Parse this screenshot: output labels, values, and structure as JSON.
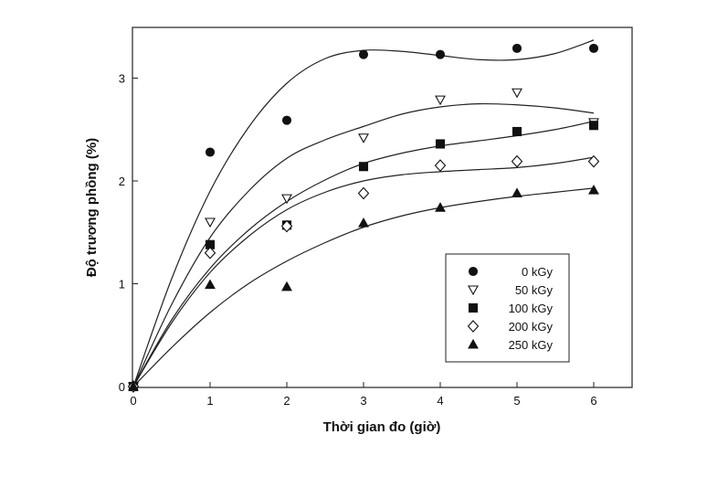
{
  "chart_data": {
    "type": "scatter",
    "title": "",
    "xlabel": "Thời gian đo (giờ)",
    "ylabel": "Độ trương phồng (%)",
    "xlim": [
      0,
      6.5
    ],
    "ylim": [
      0,
      3.5
    ],
    "xticks": [
      0,
      1,
      2,
      3,
      4,
      5,
      6
    ],
    "yticks": [
      0,
      1,
      2,
      3
    ],
    "grid": false,
    "legend_position": "lower-right",
    "trend_lines": true,
    "series": [
      {
        "name": "0 kGy",
        "marker": "filled-circle",
        "x": [
          0,
          1,
          2,
          3,
          4,
          5,
          6
        ],
        "y": [
          0,
          2.28,
          2.59,
          3.23,
          3.23,
          3.29,
          3.29
        ]
      },
      {
        "name": "50 kGy",
        "marker": "open-triangle-down",
        "x": [
          0,
          1,
          2,
          3,
          4,
          5,
          6
        ],
        "y": [
          0,
          1.6,
          1.83,
          2.42,
          2.79,
          2.86,
          2.57
        ]
      },
      {
        "name": "100 kGy",
        "marker": "filled-square",
        "x": [
          0,
          1,
          2,
          3,
          4,
          5,
          6
        ],
        "y": [
          0,
          1.38,
          1.57,
          2.14,
          2.36,
          2.48,
          2.54
        ]
      },
      {
        "name": "200 kGy",
        "marker": "open-diamond",
        "x": [
          0,
          1,
          2,
          3,
          4,
          5,
          6
        ],
        "y": [
          0,
          1.3,
          1.56,
          1.88,
          2.15,
          2.19,
          2.19
        ]
      },
      {
        "name": "250 kGy",
        "marker": "filled-triangle-up",
        "x": [
          0,
          1,
          2,
          3,
          4,
          5,
          6
        ],
        "y": [
          0,
          0.99,
          0.97,
          1.59,
          1.74,
          1.88,
          1.91
        ]
      }
    ],
    "fit_curves": [
      {
        "name": "0 kGy",
        "x": [
          0,
          0.5,
          1,
          1.5,
          2,
          2.5,
          3,
          3.5,
          4,
          4.5,
          5,
          5.5,
          6
        ],
        "y": [
          0,
          1.05,
          1.9,
          2.52,
          2.95,
          3.19,
          3.27,
          3.26,
          3.22,
          3.18,
          3.18,
          3.24,
          3.37
        ]
      },
      {
        "name": "50 kGy",
        "x": [
          0,
          0.5,
          1,
          1.5,
          2,
          2.5,
          3,
          3.5,
          4,
          4.5,
          5,
          5.5,
          6
        ],
        "y": [
          0,
          0.8,
          1.45,
          1.9,
          2.22,
          2.4,
          2.53,
          2.65,
          2.72,
          2.75,
          2.74,
          2.71,
          2.66
        ]
      },
      {
        "name": "100 kGy",
        "x": [
          0,
          0.5,
          1,
          1.5,
          2,
          2.5,
          3,
          3.5,
          4,
          4.5,
          5,
          5.5,
          6
        ],
        "y": [
          0,
          0.65,
          1.15,
          1.52,
          1.8,
          2.01,
          2.17,
          2.27,
          2.34,
          2.39,
          2.44,
          2.5,
          2.58
        ]
      },
      {
        "name": "200 kGy",
        "x": [
          0,
          0.5,
          1,
          1.5,
          2,
          2.5,
          3,
          3.5,
          4,
          4.5,
          5,
          5.5,
          6
        ],
        "y": [
          0,
          0.62,
          1.11,
          1.46,
          1.72,
          1.89,
          2.0,
          2.06,
          2.09,
          2.11,
          2.13,
          2.17,
          2.23
        ]
      },
      {
        "name": "250 kGy",
        "x": [
          0,
          0.5,
          1,
          1.5,
          2,
          2.5,
          3,
          3.5,
          4,
          4.5,
          5,
          5.5,
          6
        ],
        "y": [
          0,
          0.38,
          0.72,
          1.0,
          1.22,
          1.4,
          1.55,
          1.66,
          1.74,
          1.8,
          1.85,
          1.89,
          1.93
        ]
      }
    ]
  }
}
